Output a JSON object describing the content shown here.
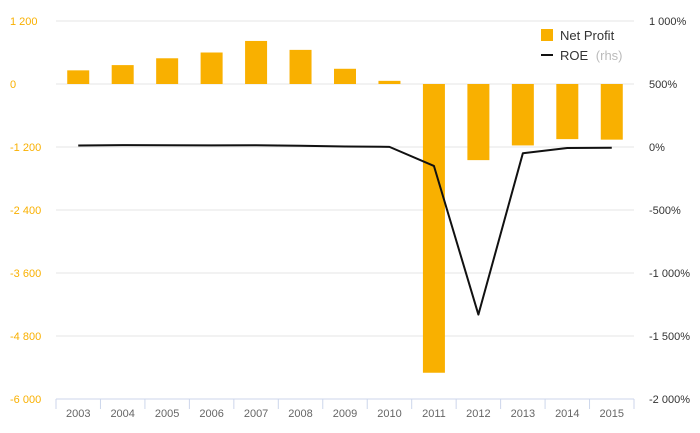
{
  "chart_data": {
    "type": "bar",
    "categories": [
      "2003",
      "2004",
      "2005",
      "2006",
      "2007",
      "2008",
      "2009",
      "2010",
      "2011",
      "2012",
      "2013",
      "2014",
      "2015"
    ],
    "series": [
      {
        "name": "Net Profit",
        "kind": "bar",
        "axis": "left",
        "color": "#F9B000",
        "values": [
          260,
          360,
          490,
          600,
          820,
          650,
          290,
          60,
          -5500,
          -1450,
          -1170,
          -1050,
          -1060
        ]
      },
      {
        "name": "ROE",
        "kind": "line",
        "axis": "right",
        "color": "#111111",
        "values": [
          12,
          15,
          14,
          13,
          14,
          10,
          4,
          1,
          -150,
          -1330,
          -50,
          -8,
          -6
        ]
      }
    ],
    "legend": [
      {
        "label": "Net Profit",
        "suffix": ""
      },
      {
        "label": "ROE",
        "suffix": "(rhs)"
      }
    ],
    "legend_position": "top-right",
    "y_left": {
      "ylim": [
        -6000,
        1200
      ],
      "ticks": [
        1200,
        0,
        -1200,
        -2400,
        -3600,
        -4800,
        -6000
      ],
      "tick_labels": [
        "1 200",
        "0",
        "-1 200",
        "-2 400",
        "-3 600",
        "-4 800",
        "-6 000"
      ],
      "label_color": "#F9B000"
    },
    "y_right": {
      "ylim": [
        -2000,
        1000
      ],
      "tick_labels": [
        "1 000%",
        "500%",
        "0%",
        "-500%",
        "-1 000%",
        "-1 500%",
        "-2 000%"
      ]
    },
    "grid": true
  }
}
